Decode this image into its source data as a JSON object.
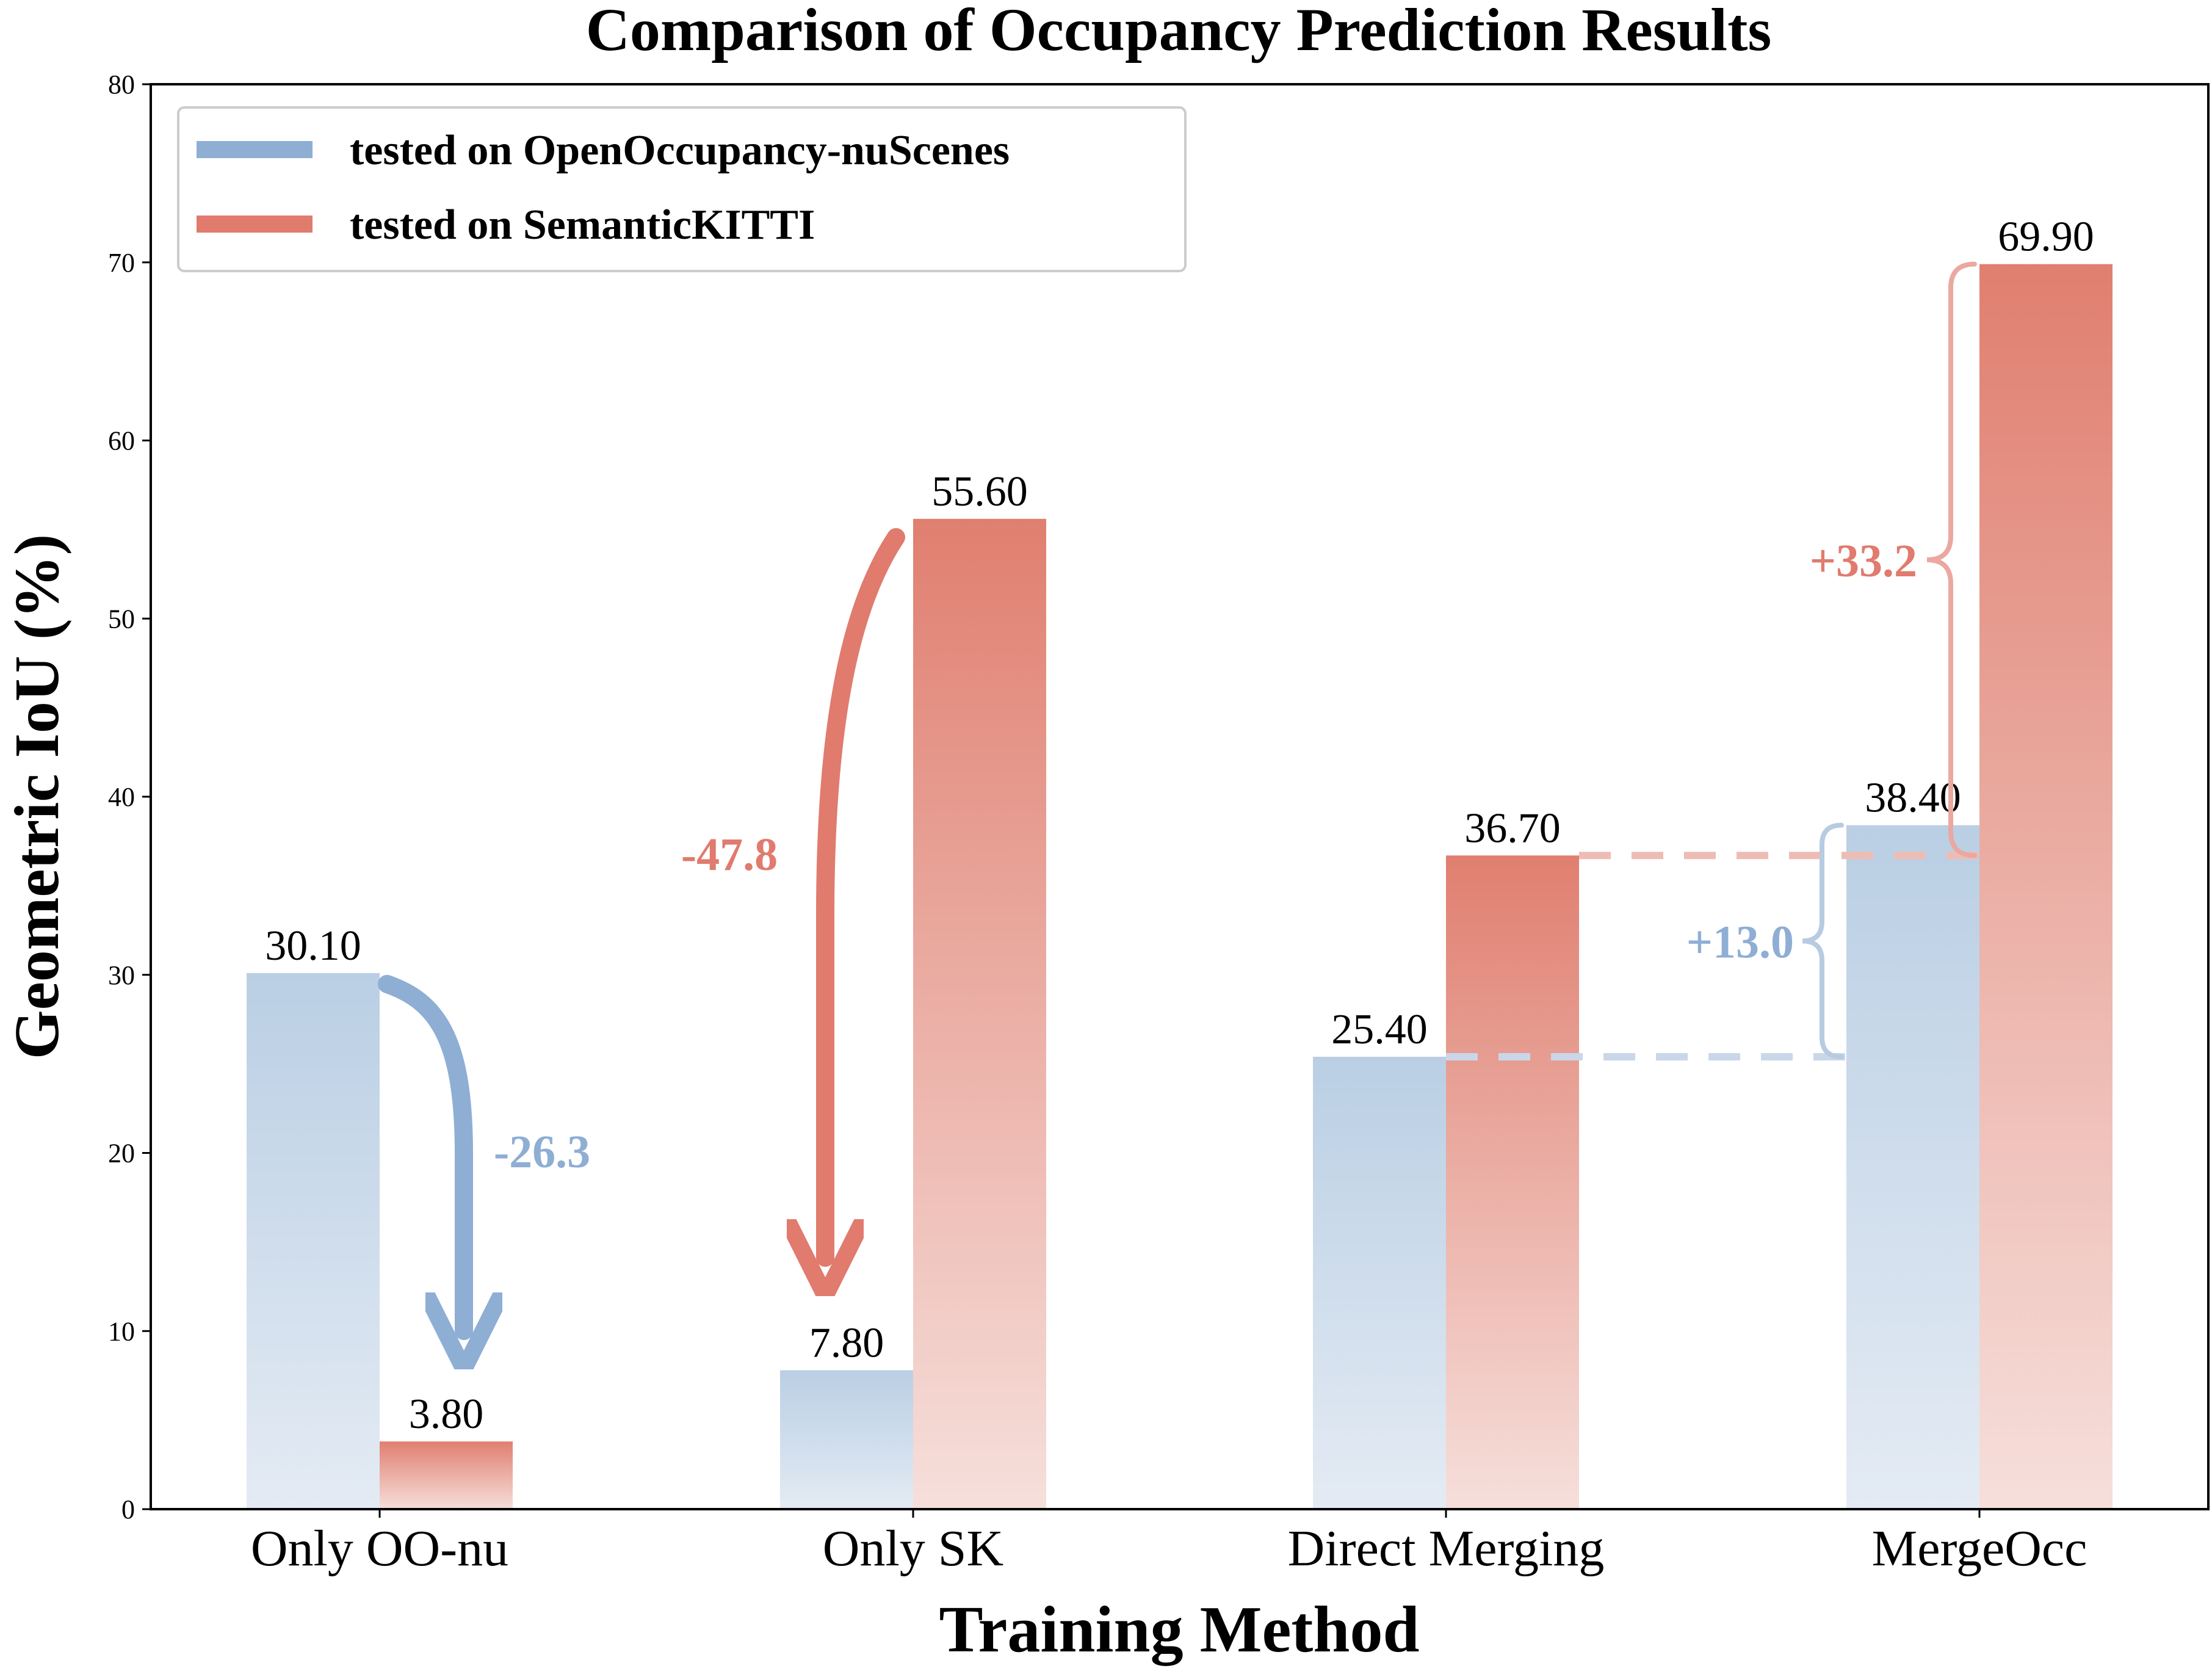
{
  "chart_data": {
    "type": "bar",
    "title": "Comparison of Occupancy Prediction Results",
    "xlabel": "Training Method",
    "ylabel": "Geometric IoU (%)",
    "ylim": [
      0,
      80
    ],
    "yticks": [
      0,
      10,
      20,
      30,
      40,
      50,
      60,
      70,
      80
    ],
    "categories": [
      "Only OO-nu",
      "Only SK",
      "Direct Merging",
      "MergeOcc"
    ],
    "series": [
      {
        "name": "tested on OpenOccupancy-nuScenes",
        "values": [
          30.1,
          7.8,
          25.4,
          38.4
        ],
        "labels": [
          "30.10",
          "7.80",
          "25.40",
          "38.40"
        ],
        "color": "#8eaed4"
      },
      {
        "name": "tested on SemanticKITTI",
        "values": [
          3.8,
          55.6,
          36.7,
          69.9
        ],
        "labels": [
          "3.80",
          "55.60",
          "36.70",
          "69.90"
        ],
        "color": "#e07b6e"
      }
    ],
    "legend_position": "top-left",
    "grid": false,
    "annotations": [
      {
        "text": "-26.3",
        "color": "#8eaed4"
      },
      {
        "text": "-47.8",
        "color": "#e07b6e"
      },
      {
        "text": "+13.0",
        "color": "#8eaed4"
      },
      {
        "text": "+33.2",
        "color": "#e07b6e"
      }
    ]
  }
}
